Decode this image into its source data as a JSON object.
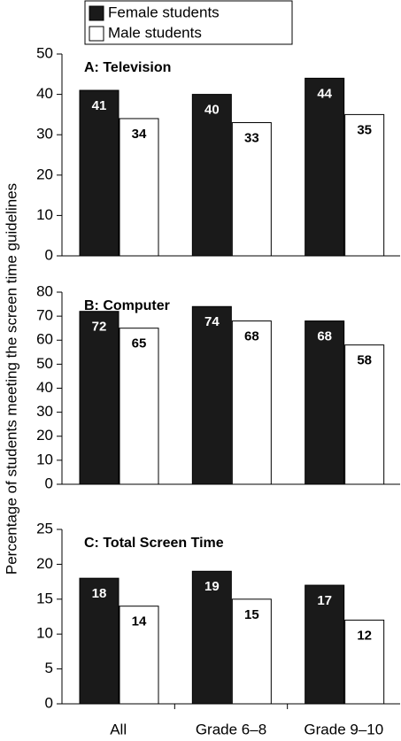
{
  "chart_data": [
    {
      "type": "bar",
      "title": "A: Television",
      "ylabel": "Percentage of students meeting the screen time guidelines",
      "ylim": [
        0,
        50
      ],
      "yticks": [
        0,
        10,
        20,
        30,
        40,
        50
      ],
      "series": [
        {
          "name": "Female students",
          "color": "#1a1a1a",
          "values": [
            41,
            40,
            44
          ]
        },
        {
          "name": "Male students",
          "color": "#ffffff",
          "values": [
            34,
            33,
            35
          ]
        }
      ]
    },
    {
      "type": "bar",
      "title": "B: Computer",
      "ylim": [
        0,
        80
      ],
      "yticks": [
        0,
        10,
        20,
        30,
        40,
        50,
        60,
        70,
        80
      ],
      "series": [
        {
          "color": "#1a1a1a",
          "values": [
            72,
            74,
            68
          ]
        },
        {
          "color": "#ffffff",
          "values": [
            65,
            68,
            58
          ]
        }
      ]
    },
    {
      "type": "bar",
      "title": "C: Total Screen Time",
      "ylim": [
        0,
        25
      ],
      "yticks": [
        0,
        5,
        10,
        15,
        20,
        25
      ],
      "categories": [
        "All",
        "Grade 6–8",
        "Grade 9–10"
      ],
      "series": [
        {
          "color": "#1a1a1a",
          "values": [
            18,
            19,
            17
          ]
        },
        {
          "color": "#ffffff",
          "values": [
            14,
            15,
            12
          ]
        }
      ]
    }
  ]
}
